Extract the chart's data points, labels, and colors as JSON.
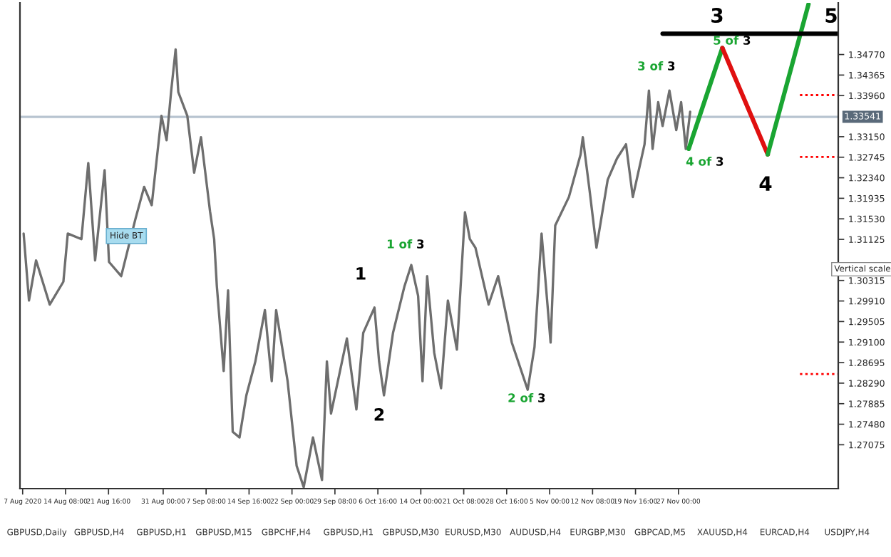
{
  "chart_data": {
    "type": "line",
    "series": [
      {
        "color": "#6e6e6e",
        "x": [
          "2020-08-07T04:00",
          "2020-08-08T02:00",
          "2020-08-09T07:00",
          "2020-08-11T15:00",
          "2020-08-13T23:00",
          "2020-08-14T17:00",
          "2020-08-17T01:00",
          "2020-08-18T05:00",
          "2020-08-19T09:00",
          "2020-08-21T00:00",
          "2020-08-21T18:00",
          "2020-08-23T20:00",
          "2020-08-26T06:00",
          "2020-08-27T18:00",
          "2020-08-29T01:00",
          "2020-08-30T17:00",
          "2020-08-31T14:00",
          "2020-09-01T09:00",
          "2020-09-02T03:00",
          "2020-09-02T14:00",
          "2020-09-04T03:00",
          "2020-09-05T07:00",
          "2020-09-06T11:00",
          "2020-09-08T00:00",
          "2020-09-08T17:00",
          "2020-09-09T04:00",
          "2020-09-10T08:00",
          "2020-09-11T02:00",
          "2020-09-11T21:00",
          "2020-09-13T01:00",
          "2020-09-14T05:00",
          "2020-09-15T18:00",
          "2020-09-17T09:00",
          "2020-09-18T13:00",
          "2020-09-19T07:00",
          "2020-09-21T06:00",
          "2020-09-22T19:00",
          "2020-09-24T00:00",
          "2020-09-25T14:00",
          "2020-09-27T03:00",
          "2020-09-27T23:00",
          "2020-09-28T16:00",
          "2020-10-01T09:00",
          "2020-10-03T00:00",
          "2020-10-04T04:00",
          "2020-10-06T02:00",
          "2020-10-06T21:00",
          "2020-10-07T17:00",
          "2020-10-09T06:00",
          "2020-10-11T05:00",
          "2020-10-12T09:00",
          "2020-10-13T13:00",
          "2020-10-14T07:00",
          "2020-10-15T02:00",
          "2020-10-16T07:00",
          "2020-10-17T11:00",
          "2020-10-18T15:00",
          "2020-10-20T04:00",
          "2020-10-21T13:00",
          "2020-10-22T09:00",
          "2020-10-23T08:00",
          "2020-10-25T14:00",
          "2020-10-27T05:00",
          "2020-10-29T13:00",
          "2020-11-01T06:00",
          "2020-11-02T10:00",
          "2020-11-03T15:00",
          "2020-11-05T04:00",
          "2020-11-05T23:00",
          "2020-11-08T07:00",
          "2020-11-10T07:00",
          "2020-11-10T16:00",
          "2020-11-11T20:00",
          "2020-11-13T00:00",
          "2020-11-14T22:00",
          "2020-11-16T12:00",
          "2020-11-18T01:00",
          "2020-11-19T05:00",
          "2020-11-21T05:00",
          "2020-11-21T23:00",
          "2020-11-22T14:00",
          "2020-11-23T13:00",
          "2020-11-24T07:00",
          "2020-11-25T11:00",
          "2020-11-26T15:00",
          "2020-11-27T11:00",
          "2020-11-28T06:00",
          "2020-11-29T00:00"
        ],
        "values": [
          1.3124,
          1.2992,
          1.3071,
          1.2984,
          1.3029,
          1.3124,
          1.3113,
          1.3263,
          1.3071,
          1.3249,
          1.3068,
          1.304,
          1.3152,
          1.3216,
          1.318,
          1.3356,
          1.3308,
          1.3406,
          1.3487,
          1.3403,
          1.3356,
          1.3244,
          1.3314,
          1.3168,
          1.3113,
          1.302,
          1.2853,
          1.3012,
          1.2733,
          1.2722,
          1.2805,
          1.2872,
          1.2973,
          1.2833,
          1.2973,
          1.2833,
          1.2666,
          1.2624,
          1.2722,
          1.2638,
          1.2872,
          1.2769,
          1.2917,
          1.2777,
          1.2928,
          1.2978,
          1.2872,
          1.2805,
          1.2928,
          1.302,
          1.3062,
          1.3001,
          1.2833,
          1.304,
          1.2889,
          1.2819,
          1.2992,
          1.2895,
          1.3166,
          1.3113,
          1.3096,
          1.2984,
          1.304,
          1.2909,
          1.2816,
          1.29,
          1.3124,
          1.2909,
          1.314,
          1.3196,
          1.328,
          1.3314,
          1.3208,
          1.3096,
          1.323,
          1.3272,
          1.33,
          1.3196,
          1.33,
          1.3406,
          1.3291,
          1.3383,
          1.3336,
          1.3406,
          1.3328,
          1.3383,
          1.3291,
          1.3364
        ]
      },
      {
        "color": "#1aa532",
        "x": [
          "2020-11-28T18:00",
          "2020-12-04T12:00"
        ],
        "values": [
          1.3291,
          1.349
        ]
      },
      {
        "color": "#e01010",
        "x": [
          "2020-12-04T12:00",
          "2020-12-12T06:00"
        ],
        "values": [
          1.349,
          1.328
        ]
      },
      {
        "color": "#1aa532",
        "x": [
          "2020-12-12T06:00",
          "2020-12-19T05:00"
        ],
        "values": [
          1.328,
          1.3576
        ]
      },
      {
        "color": "#000000",
        "x": [
          "2020-11-24T07:00",
          "2020-12-24T07:00"
        ],
        "values": [
          1.3518,
          1.3518
        ]
      },
      {
        "color": "#ff0000",
        "line_style": "dotted",
        "x": [
          "2020-12-17T18:00",
          "2020-12-24T07:00"
        ],
        "values": [
          1.3397,
          1.3397
        ]
      },
      {
        "color": "#ff0000",
        "line_style": "dotted",
        "x": [
          "2020-12-17T18:00",
          "2020-12-24T07:00"
        ],
        "values": [
          1.3275,
          1.3275
        ]
      },
      {
        "color": "#ff0000",
        "line_style": "dotted",
        "x": [
          "2020-12-17T18:00",
          "2020-12-24T07:00"
        ],
        "values": [
          1.2847,
          1.2847
        ]
      }
    ],
    "xlim": [
      "2020-08-06T13:00",
      "2020-12-24T07:00"
    ],
    "xticks": [
      {
        "value": "2020-08-07T00:00",
        "label": "7 Aug 2020"
      },
      {
        "value": "2020-08-14T08:00",
        "label": "14 Aug 08:00"
      },
      {
        "value": "2020-08-21T16:00",
        "label": "21 Aug 16:00"
      },
      {
        "value": "2020-08-31T00:00",
        "label": "31 Aug 00:00"
      },
      {
        "value": "2020-09-07T08:00",
        "label": "7 Sep 08:00"
      },
      {
        "value": "2020-09-14T16:00",
        "label": "14 Sep 16:00"
      },
      {
        "value": "2020-09-22T00:00",
        "label": "22 Sep 00:00"
      },
      {
        "value": "2020-09-29T08:00",
        "label": "29 Sep 08:00"
      },
      {
        "value": "2020-10-06T16:00",
        "label": "6 Oct 16:00"
      },
      {
        "value": "2020-10-14T00:00",
        "label": "14 Oct 00:00"
      },
      {
        "value": "2020-10-21T08:00",
        "label": "21 Oct 08:00"
      },
      {
        "value": "2020-10-28T16:00",
        "label": "28 Oct 16:00"
      },
      {
        "value": "2020-11-05T00:00",
        "label": "5 Nov 00:00"
      },
      {
        "value": "2020-11-12T08:00",
        "label": "12 Nov 08:00"
      },
      {
        "value": "2020-11-19T16:00",
        "label": "19 Nov 16:00"
      },
      {
        "value": "2020-11-27T00:00",
        "label": "27 Nov 00:00"
      }
    ],
    "ylim": [
      1.2621,
      1.35789
    ],
    "yticks": [
      {
        "value": 1.27075,
        "label": "1.27075"
      },
      {
        "value": 1.2748,
        "label": "1.27480"
      },
      {
        "value": 1.27885,
        "label": "1.27885"
      },
      {
        "value": 1.2829,
        "label": "1.28290"
      },
      {
        "value": 1.28695,
        "label": "1.28695"
      },
      {
        "value": 1.291,
        "label": "1.29100"
      },
      {
        "value": 1.29505,
        "label": "1.29505"
      },
      {
        "value": 1.2991,
        "label": "1.29910"
      },
      {
        "value": 1.30315,
        "label": "1.30315"
      },
      {
        "value": 1.31125,
        "label": "1.31125"
      },
      {
        "value": 1.3153,
        "label": "1.31530"
      },
      {
        "value": 1.31935,
        "label": "1.31935"
      },
      {
        "value": 1.3234,
        "label": "1.32340"
      },
      {
        "value": 1.32745,
        "label": "1.32745"
      },
      {
        "value": 1.3315,
        "label": "1.33150"
      },
      {
        "value": 1.3396,
        "label": "1.33960"
      },
      {
        "value": 1.34365,
        "label": "1.34365"
      },
      {
        "value": 1.3477,
        "label": "1.34770"
      }
    ],
    "ref_lines": [
      {
        "axis": "y",
        "value": 1.33541,
        "label": "1.33541",
        "color": "#b8c4d0",
        "line_style": "solid"
      }
    ],
    "annotations": [
      "1",
      "2",
      "1 of 3",
      "2 of 3",
      "3 of 3",
      "4 of 3",
      "5 of 3",
      "3",
      "4",
      "5",
      "GBPUSD,Daily",
      "GBPUSD,H4",
      "GBPUSD,H1",
      "GBPUSD,M15",
      "GBPCHF,H4",
      "GBPUSD,H1",
      "GBPUSD,M30",
      "EURUSD,M30",
      "AUDUSD,H4",
      "EURGBP,M30",
      "GBPCAD,M5",
      "XAUUSD,H4",
      "EURCAD,H4",
      "USDJPY,H4",
      "Hide BT",
      "Vertical scale"
    ],
    "grid": false,
    "legend": false,
    "marker": "none",
    "line_style": "solid"
  }
}
